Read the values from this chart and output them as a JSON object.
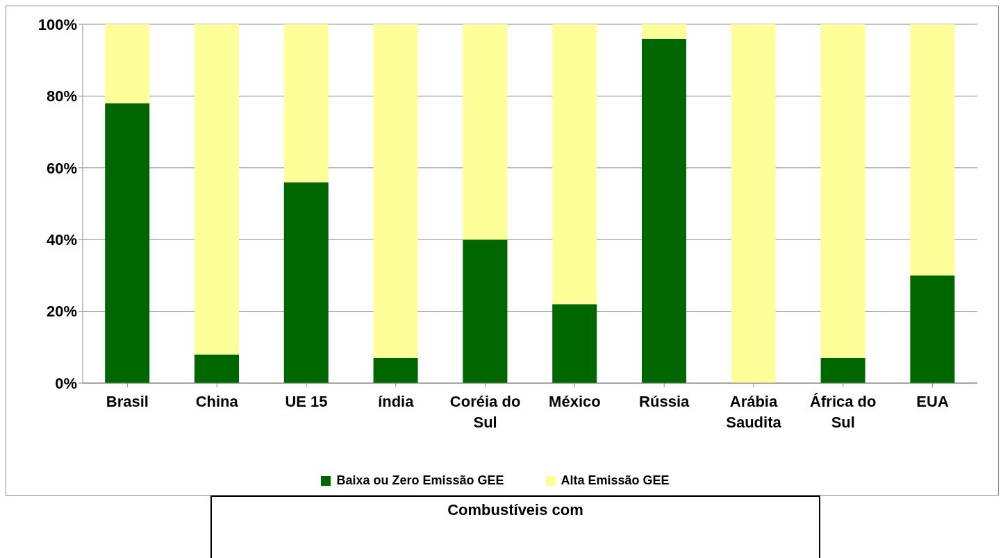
{
  "chart_data": {
    "type": "bar",
    "stacked": true,
    "categories": [
      "Brasil",
      "China",
      "UE 15",
      "índia",
      "Coréia do Sul",
      "México",
      "Rússia",
      "Arábia Saudita",
      "África do Sul",
      "EUA"
    ],
    "series": [
      {
        "name": "Baixa ou Zero Emissão GEE",
        "color": "#006600",
        "values": [
          78,
          8,
          56,
          7,
          40,
          22,
          96,
          0,
          7,
          30
        ]
      },
      {
        "name": "Alta Emissão GEE",
        "color": "#ffff99",
        "values": [
          22,
          92,
          44,
          93,
          60,
          78,
          4,
          100,
          93,
          70
        ]
      }
    ],
    "ylim": [
      0,
      100
    ],
    "yticks": [
      {
        "value": 0,
        "label": "0%"
      },
      {
        "value": 20,
        "label": "20%"
      },
      {
        "value": 40,
        "label": "40%"
      },
      {
        "value": 60,
        "label": "60%"
      },
      {
        "value": 80,
        "label": "80%"
      },
      {
        "value": 100,
        "label": "100%"
      }
    ],
    "grid": "y",
    "legend": "bottom",
    "annotations": [
      "Combustíveis com"
    ]
  }
}
